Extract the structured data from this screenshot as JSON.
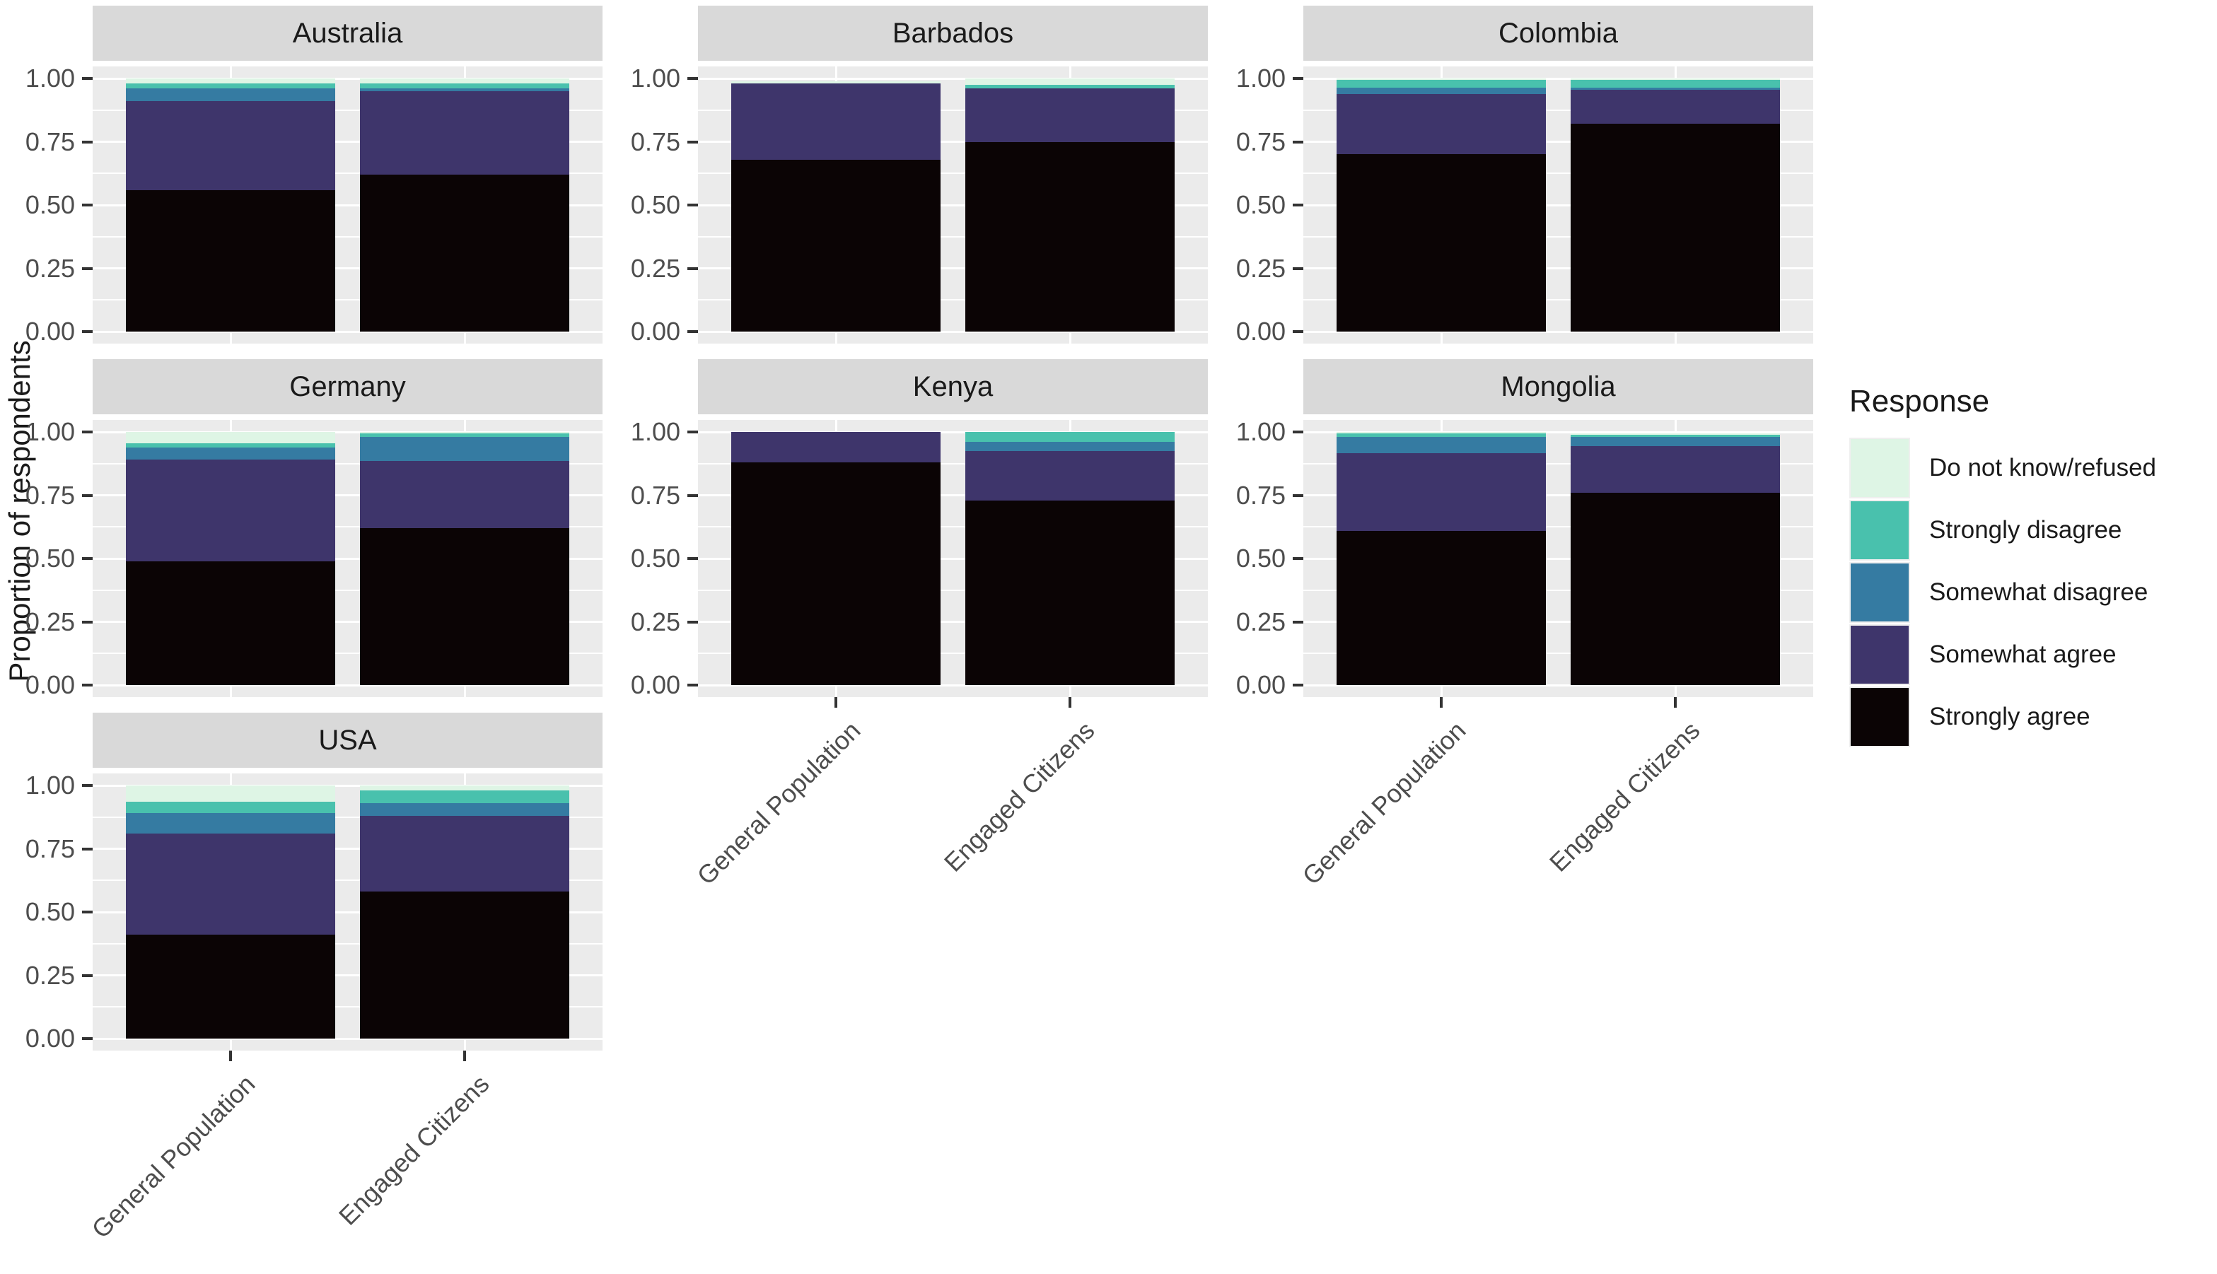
{
  "legend": {
    "title": "Response",
    "items": [
      {
        "label": "Do not know/refused",
        "color": "#DEF5E5"
      },
      {
        "label": "Strongly disagree",
        "color": "#49C1AD"
      },
      {
        "label": "Somewhat disagree",
        "color": "#357BA2"
      },
      {
        "label": "Somewhat agree",
        "color": "#3E356B"
      },
      {
        "label": "Strongly agree",
        "color": "#0B0405"
      }
    ]
  },
  "chart_data": {
    "type": "bar",
    "stacked": true,
    "ylabel": "Proportion of respondents",
    "legend_position": "right",
    "grid": "major+minor",
    "ylim": [
      0,
      1
    ],
    "ytick_values": [
      0,
      0.25,
      0.5,
      0.75,
      1
    ],
    "ytick_labels": [
      "0.00",
      "0.25",
      "0.50",
      "0.75",
      "1.00"
    ],
    "categories": [
      "General Population",
      "Engaged Citizens"
    ],
    "stack_order_bottom_to_top": [
      "Strongly agree",
      "Somewhat agree",
      "Somewhat disagree",
      "Strongly disagree",
      "Do not know/refused"
    ],
    "facets": [
      {
        "country": "Australia",
        "bars": [
          {
            "category": "General Population",
            "values": {
              "Strongly agree": 0.56,
              "Somewhat agree": 0.35,
              "Somewhat disagree": 0.05,
              "Strongly disagree": 0.02,
              "Do not know/refused": 0.02
            }
          },
          {
            "category": "Engaged Citizens",
            "values": {
              "Strongly agree": 0.62,
              "Somewhat agree": 0.33,
              "Somewhat disagree": 0.01,
              "Strongly disagree": 0.02,
              "Do not know/refused": 0.02
            }
          }
        ]
      },
      {
        "country": "Barbados",
        "bars": [
          {
            "category": "General Population",
            "values": {
              "Strongly agree": 0.68,
              "Somewhat agree": 0.3,
              "Somewhat disagree": 0,
              "Strongly disagree": 0,
              "Do not know/refused": 0.01
            }
          },
          {
            "category": "Engaged Citizens",
            "values": {
              "Strongly agree": 0.75,
              "Somewhat agree": 0.21,
              "Somewhat disagree": 0,
              "Strongly disagree": 0.015,
              "Do not know/refused": 0.025
            }
          }
        ]
      },
      {
        "country": "Colombia",
        "bars": [
          {
            "category": "General Population",
            "values": {
              "Strongly agree": 0.7,
              "Somewhat agree": 0.24,
              "Somewhat disagree": 0.025,
              "Strongly disagree": 0.03,
              "Do not know/refused": 0.005
            }
          },
          {
            "category": "Engaged Citizens",
            "values": {
              "Strongly agree": 0.82,
              "Somewhat agree": 0.135,
              "Somewhat disagree": 0.01,
              "Strongly disagree": 0.03,
              "Do not know/refused": 0.005
            }
          }
        ]
      },
      {
        "country": "Germany",
        "bars": [
          {
            "category": "General Population",
            "values": {
              "Strongly agree": 0.49,
              "Somewhat agree": 0.4,
              "Somewhat disagree": 0.05,
              "Strongly disagree": 0.015,
              "Do not know/refused": 0.045
            }
          },
          {
            "category": "Engaged Citizens",
            "values": {
              "Strongly agree": 0.62,
              "Somewhat agree": 0.265,
              "Somewhat disagree": 0.095,
              "Strongly disagree": 0.015,
              "Do not know/refused": 0.005
            }
          }
        ]
      },
      {
        "country": "Kenya",
        "bars": [
          {
            "category": "General Population",
            "values": {
              "Strongly agree": 0.88,
              "Somewhat agree": 0.12,
              "Somewhat disagree": 0,
              "Strongly disagree": 0,
              "Do not know/refused": 0
            }
          },
          {
            "category": "Engaged Citizens",
            "values": {
              "Strongly agree": 0.73,
              "Somewhat agree": 0.195,
              "Somewhat disagree": 0.035,
              "Strongly disagree": 0.04,
              "Do not know/refused": 0
            }
          }
        ]
      },
      {
        "country": "Mongolia",
        "bars": [
          {
            "category": "General Population",
            "values": {
              "Strongly agree": 0.61,
              "Somewhat agree": 0.305,
              "Somewhat disagree": 0.065,
              "Strongly disagree": 0.015,
              "Do not know/refused": 0.005
            }
          },
          {
            "category": "Engaged Citizens",
            "values": {
              "Strongly agree": 0.76,
              "Somewhat agree": 0.185,
              "Somewhat disagree": 0.035,
              "Strongly disagree": 0.01,
              "Do not know/refused": 0.005
            }
          }
        ]
      },
      {
        "country": "USA",
        "bars": [
          {
            "category": "General Population",
            "values": {
              "Strongly agree": 0.41,
              "Somewhat agree": 0.4,
              "Somewhat disagree": 0.08,
              "Strongly disagree": 0.045,
              "Do not know/refused": 0.065
            }
          },
          {
            "category": "Engaged Citizens",
            "values": {
              "Strongly agree": 0.58,
              "Somewhat agree": 0.3,
              "Somewhat disagree": 0.05,
              "Strongly disagree": 0.05,
              "Do not know/refused": 0.02
            }
          }
        ]
      }
    ]
  }
}
